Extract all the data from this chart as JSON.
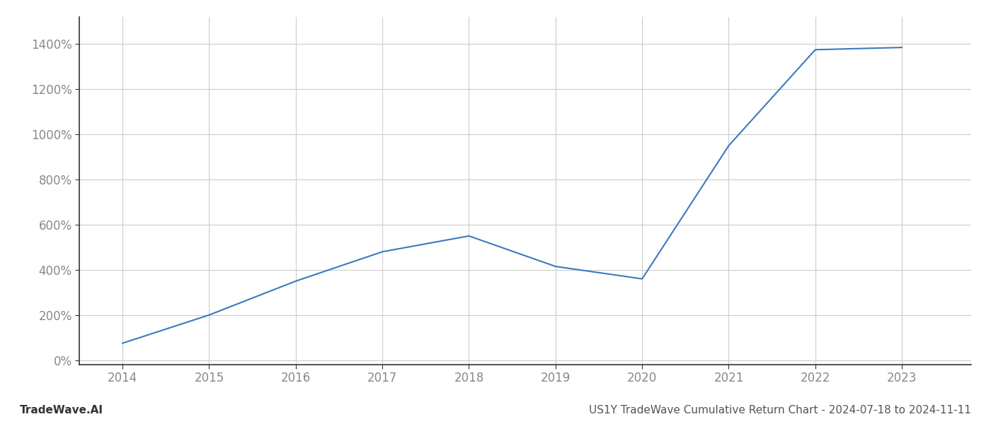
{
  "x": [
    2014,
    2015,
    2016,
    2017,
    2018,
    2019,
    2020,
    2021,
    2022,
    2023
  ],
  "y": [
    75,
    200,
    350,
    480,
    550,
    415,
    360,
    950,
    1375,
    1385
  ],
  "line_color": "#3a7abf",
  "line_width": 1.5,
  "bg_color": "#ffffff",
  "plot_bg_color": "#ffffff",
  "grid_color": "#cccccc",
  "footer_left": "TradeWave.AI",
  "footer_right": "US1Y TradeWave Cumulative Return Chart - 2024-07-18 to 2024-11-11",
  "xlim": [
    2013.5,
    2023.8
  ],
  "ylim": [
    -20,
    1520
  ],
  "yticks": [
    0,
    200,
    400,
    600,
    800,
    1000,
    1200,
    1400
  ],
  "ytick_labels": [
    "0%",
    "200%",
    "400%",
    "600%",
    "800%",
    "1000%",
    "1200%",
    "1400%"
  ],
  "xticks": [
    2014,
    2015,
    2016,
    2017,
    2018,
    2019,
    2020,
    2021,
    2022,
    2023
  ],
  "tick_fontsize": 12,
  "footer_fontsize": 11,
  "spine_color": "#333333",
  "tick_color": "#888888"
}
